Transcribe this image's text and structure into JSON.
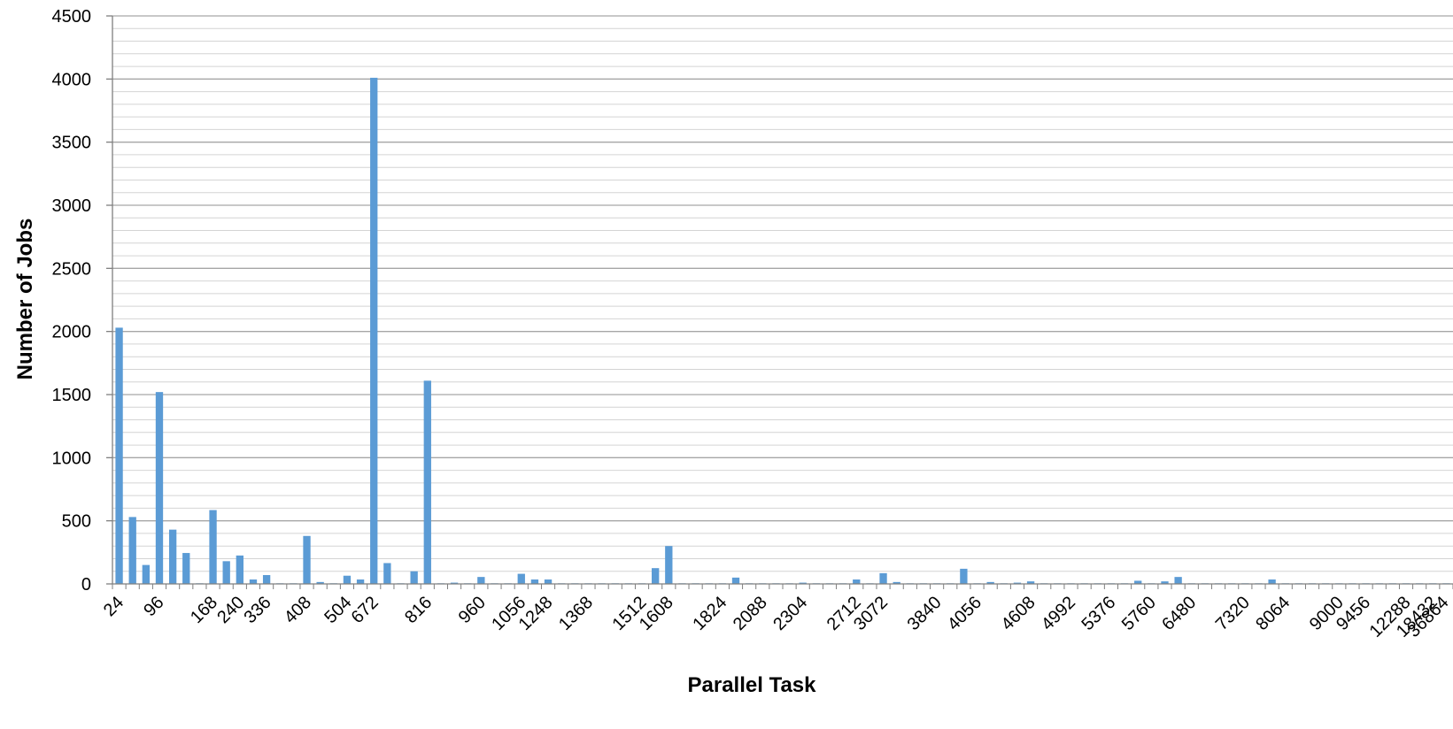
{
  "chart_data": {
    "type": "bar",
    "title": "",
    "xlabel": "Parallel Task",
    "ylabel": "Number of Jobs",
    "ylim": [
      0,
      4500
    ],
    "y_major_ticks": [
      0,
      500,
      1000,
      1500,
      2000,
      2500,
      3000,
      3500,
      4000,
      4500
    ],
    "y_minor_step": 100,
    "grid": true,
    "legend": "none",
    "bar_color": "#5b9bd5",
    "category_count": 100,
    "x_tick_labels": [
      "24",
      "96",
      "168",
      "240",
      "336",
      "408",
      "504",
      "672",
      "816",
      "960",
      "1056",
      "1248",
      "1368",
      "1512",
      "1608",
      "1824",
      "2088",
      "2304",
      "2712",
      "3072",
      "3840",
      "4056",
      "4608",
      "4992",
      "5376",
      "5760",
      "6480",
      "7320",
      "8064",
      "9000",
      "9456",
      "12288",
      "18432",
      "36864"
    ],
    "x_tick_positions": [
      0,
      3,
      7,
      9,
      11,
      14,
      17,
      19,
      23,
      27,
      30,
      32,
      35,
      39,
      41,
      45,
      48,
      51,
      55,
      57,
      61,
      64,
      68,
      71,
      74,
      77,
      80,
      84,
      87,
      91,
      93,
      96,
      98,
      100
    ],
    "values": [
      2030,
      530,
      150,
      1520,
      430,
      245,
      5,
      585,
      180,
      225,
      35,
      70,
      5,
      5,
      380,
      15,
      5,
      65,
      35,
      4010,
      165,
      5,
      100,
      1610,
      5,
      10,
      5,
      55,
      5,
      5,
      80,
      35,
      35,
      5,
      5,
      5,
      5,
      5,
      5,
      5,
      125,
      300,
      5,
      5,
      5,
      5,
      50,
      5,
      5,
      5,
      5,
      10,
      5,
      5,
      5,
      35,
      5,
      85,
      15,
      5,
      5,
      5,
      5,
      120,
      5,
      15,
      5,
      10,
      20,
      5,
      5,
      5,
      5,
      5,
      5,
      5,
      25,
      5,
      20,
      55,
      5,
      5,
      5,
      5,
      5,
      5,
      35,
      5,
      5,
      5,
      5,
      5,
      5,
      5,
      5,
      5,
      5,
      5,
      5,
      5
    ]
  }
}
